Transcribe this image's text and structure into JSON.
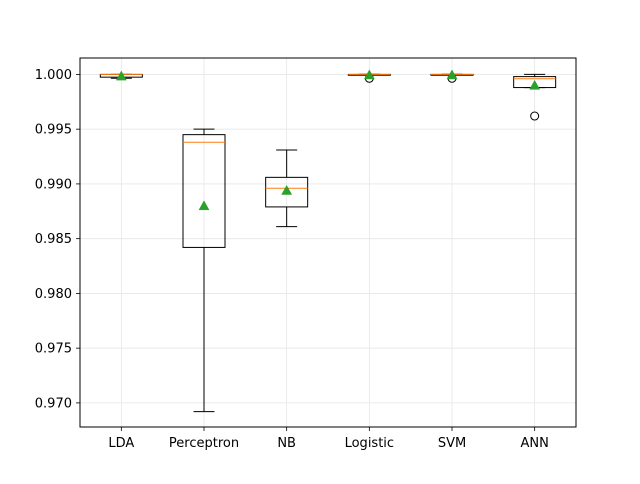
{
  "chart_data": {
    "type": "box",
    "title": "",
    "xlabel": "",
    "ylabel": "",
    "ylim": [
      0.9678,
      1.0015
    ],
    "grid": true,
    "legend": "none",
    "yticks": [
      0.97,
      0.975,
      0.98,
      0.985,
      0.99,
      0.995,
      1.0
    ],
    "ytick_labels": [
      "0.970",
      "0.975",
      "0.980",
      "0.985",
      "0.990",
      "0.995",
      "1.000"
    ],
    "categories": [
      "LDA",
      "Perceptron",
      "NB",
      "Logistic",
      "SVM",
      "ANN"
    ],
    "boxes": [
      {
        "label": "LDA",
        "whisker_low": 0.99965,
        "q1": 0.99975,
        "median": 1.0,
        "q3": 1.0,
        "whisker_high": 1.0,
        "mean": 0.99985,
        "outliers": []
      },
      {
        "label": "Perceptron",
        "whisker_low": 0.9692,
        "q1": 0.9842,
        "median": 0.9938,
        "q3": 0.9945,
        "whisker_high": 0.995,
        "mean": 0.988,
        "outliers": []
      },
      {
        "label": "NB",
        "whisker_low": 0.9861,
        "q1": 0.9879,
        "median": 0.9896,
        "q3": 0.9906,
        "whisker_high": 0.9931,
        "mean": 0.9894,
        "outliers": []
      },
      {
        "label": "Logistic",
        "whisker_low": 1.0,
        "q1": 1.0,
        "median": 1.0,
        "q3": 1.0,
        "whisker_high": 1.0,
        "mean": 0.99995,
        "outliers": [
          0.99965
        ]
      },
      {
        "label": "SVM",
        "whisker_low": 1.0,
        "q1": 1.0,
        "median": 1.0,
        "q3": 1.0,
        "whisker_high": 1.0,
        "mean": 0.99995,
        "outliers": [
          0.99965
        ]
      },
      {
        "label": "ANN",
        "whisker_low": 0.9988,
        "q1": 0.9988,
        "median": 0.9996,
        "q3": 0.9998,
        "whisker_high": 1.0,
        "mean": 0.999,
        "outliers": [
          0.9962
        ]
      }
    ],
    "colors": {
      "box": "#000000",
      "median": "#ff7f0e",
      "mean": "#2ca02c",
      "grid": "#e6e6e6",
      "outlier_face": "#ffffff"
    }
  }
}
